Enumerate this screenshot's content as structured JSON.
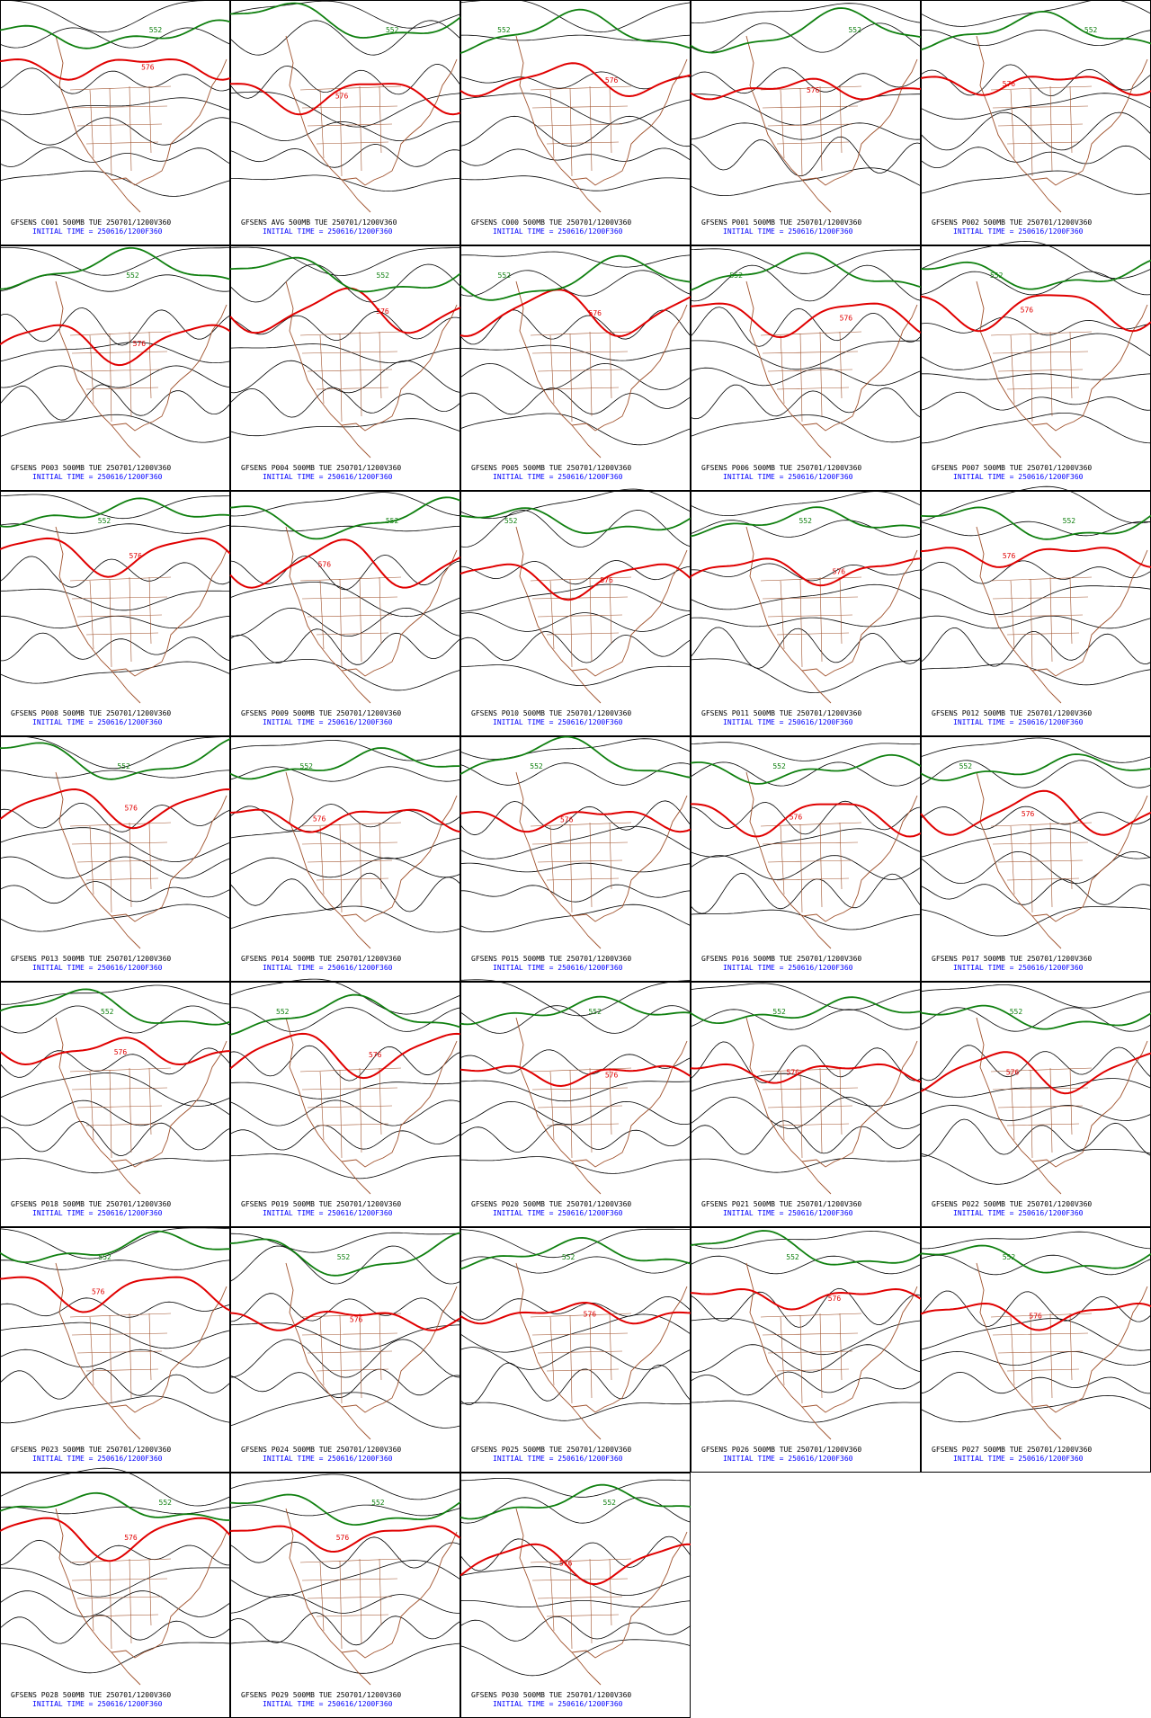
{
  "contour_labels": {
    "red": "576",
    "green": "552"
  },
  "panels": [
    {
      "label": "GFSENS C001 500MB TUE 250701/1200V360",
      "init": "INITIAL TIME = 250616/1200F360"
    },
    {
      "label": "GFSENS AVG 500MB TUE 250701/1200V360",
      "init": "INITIAL TIME = 250616/1200F360"
    },
    {
      "label": "GFSENS C000 500MB TUE 250701/1200V360",
      "init": "INITIAL TIME = 250616/1200F360"
    },
    {
      "label": "GFSENS P001 500MB TUE 250701/1200V360",
      "init": "INITIAL TIME = 250616/1200F360"
    },
    {
      "label": "GFSENS P002 500MB TUE 250701/1200V360",
      "init": "INITIAL TIME = 250616/1200F360"
    },
    {
      "label": "GFSENS P003 500MB TUE 250701/1200V360",
      "init": "INITIAL TIME = 250616/1200F360"
    },
    {
      "label": "GFSENS P004 500MB TUE 250701/1200V360",
      "init": "INITIAL TIME = 250616/1200F360"
    },
    {
      "label": "GFSENS P005 500MB TUE 250701/1200V360",
      "init": "INITIAL TIME = 250616/1200F360"
    },
    {
      "label": "GFSENS P006 500MB TUE 250701/1200V360",
      "init": "INITIAL TIME = 250616/1200F360"
    },
    {
      "label": "GFSENS P007 500MB TUE 250701/1200V360",
      "init": "INITIAL TIME = 250616/1200F360"
    },
    {
      "label": "GFSENS P008 500MB TUE 250701/1200V360",
      "init": "INITIAL TIME = 250616/1200F360"
    },
    {
      "label": "GFSENS P009 500MB TUE 250701/1200V360",
      "init": "INITIAL TIME = 250616/1200F360"
    },
    {
      "label": "GFSENS P010 500MB TUE 250701/1200V360",
      "init": "INITIAL TIME = 250616/1200F360"
    },
    {
      "label": "GFSENS P011 500MB TUE 250701/1200V360",
      "init": "INITIAL TIME = 250616/1200F360"
    },
    {
      "label": "GFSENS P012 500MB TUE 250701/1200V360",
      "init": "INITIAL TIME = 250616/1200F360"
    },
    {
      "label": "GFSENS P013 500MB TUE 250701/1200V360",
      "init": "INITIAL TIME = 250616/1200F360"
    },
    {
      "label": "GFSENS P014 500MB TUE 250701/1200V360",
      "init": "INITIAL TIME = 250616/1200F360"
    },
    {
      "label": "GFSENS P015 500MB TUE 250701/1200V360",
      "init": "INITIAL TIME = 250616/1200F360"
    },
    {
      "label": "GFSENS P016 500MB TUE 250701/1200V360",
      "init": "INITIAL TIME = 250616/1200F360"
    },
    {
      "label": "GFSENS P017 500MB TUE 250701/1200V360",
      "init": "INITIAL TIME = 250616/1200F360"
    },
    {
      "label": "GFSENS P018 500MB TUE 250701/1200V360",
      "init": "INITIAL TIME = 250616/1200F360"
    },
    {
      "label": "GFSENS P019 500MB TUE 250701/1200V360",
      "init": "INITIAL TIME = 250616/1200F360"
    },
    {
      "label": "GFSENS P020 500MB TUE 250701/1200V360",
      "init": "INITIAL TIME = 250616/1200F360"
    },
    {
      "label": "GFSENS P021 500MB TUE 250701/1200V360",
      "init": "INITIAL TIME = 250616/1200F360"
    },
    {
      "label": "GFSENS P022 500MB TUE 250701/1200V360",
      "init": "INITIAL TIME = 250616/1200F360"
    },
    {
      "label": "GFSENS P023 500MB TUE 250701/1200V360",
      "init": "INITIAL TIME = 250616/1200F360"
    },
    {
      "label": "GFSENS P024 500MB TUE 250701/1200V360",
      "init": "INITIAL TIME = 250616/1200F360"
    },
    {
      "label": "GFSENS P025 500MB TUE 250701/1200V360",
      "init": "INITIAL TIME = 250616/1200F360"
    },
    {
      "label": "GFSENS P026 500MB TUE 250701/1200V360",
      "init": "INITIAL TIME = 250616/1200F360"
    },
    {
      "label": "GFSENS P027 500MB TUE 250701/1200V360",
      "init": "INITIAL TIME = 250616/1200F360"
    },
    {
      "label": "GFSENS P028 500MB TUE 250701/1200V360",
      "init": "INITIAL TIME = 250616/1200F360"
    },
    {
      "label": "GFSENS P029 500MB TUE 250701/1200V360",
      "init": "INITIAL TIME = 250616/1200F360"
    },
    {
      "label": "GFSENS P030 500MB TUE 250701/1200V360",
      "init": "INITIAL TIME = 250616/1200F360"
    }
  ]
}
